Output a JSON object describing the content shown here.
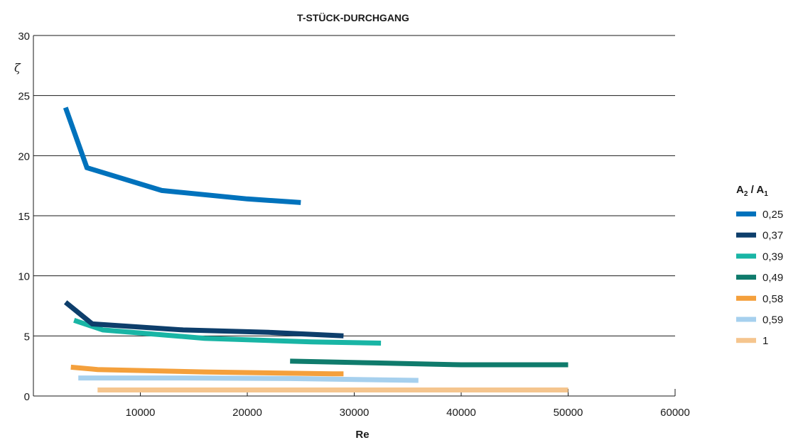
{
  "chart_data": {
    "type": "line",
    "title": "T-STÜCK-DURCHGANG",
    "xlabel": "Re",
    "ylabel": "ζ",
    "xlim": [
      0,
      60000
    ],
    "ylim": [
      0,
      30
    ],
    "x_ticks": [
      "10000",
      "20000",
      "30000",
      "40000",
      "50000",
      "60000"
    ],
    "y_ticks": [
      "0",
      "5",
      "10",
      "15",
      "20",
      "25",
      "30"
    ],
    "grid": "horizontal",
    "legend": {
      "title_main": "A",
      "title_sub1": "2",
      "title_sep": " / ",
      "title_main2": "A",
      "title_sub2": "1",
      "placement": "right"
    },
    "series": [
      {
        "name": "0,25",
        "color": "#0072bc",
        "points": [
          [
            3000,
            24.0
          ],
          [
            5000,
            19.0
          ],
          [
            12000,
            17.1
          ],
          [
            20000,
            16.4
          ],
          [
            25000,
            16.1
          ]
        ]
      },
      {
        "name": "0,37",
        "color": "#0d3e6b",
        "points": [
          [
            3000,
            7.8
          ],
          [
            5500,
            6.0
          ],
          [
            14000,
            5.5
          ],
          [
            22000,
            5.3
          ],
          [
            29000,
            5.0
          ]
        ]
      },
      {
        "name": "0,39",
        "color": "#19b5a5",
        "points": [
          [
            3800,
            6.3
          ],
          [
            6500,
            5.5
          ],
          [
            16000,
            4.8
          ],
          [
            26000,
            4.5
          ],
          [
            32500,
            4.4
          ]
        ]
      },
      {
        "name": "0,49",
        "color": "#0f7b6c",
        "points": [
          [
            24000,
            2.9
          ],
          [
            32000,
            2.75
          ],
          [
            40000,
            2.6
          ],
          [
            50000,
            2.6
          ]
        ]
      },
      {
        "name": "0,58",
        "color": "#f4a03c",
        "points": [
          [
            3500,
            2.4
          ],
          [
            6000,
            2.2
          ],
          [
            16000,
            2.0
          ],
          [
            28000,
            1.85
          ],
          [
            29000,
            1.85
          ]
        ]
      },
      {
        "name": "0,59",
        "color": "#a6d0ee",
        "points": [
          [
            4200,
            1.5
          ],
          [
            14000,
            1.5
          ],
          [
            24000,
            1.45
          ],
          [
            36000,
            1.3
          ]
        ]
      },
      {
        "name": "1",
        "color": "#f5c58e",
        "points": [
          [
            6000,
            0.5
          ],
          [
            30000,
            0.5
          ],
          [
            50000,
            0.5
          ]
        ]
      }
    ]
  }
}
